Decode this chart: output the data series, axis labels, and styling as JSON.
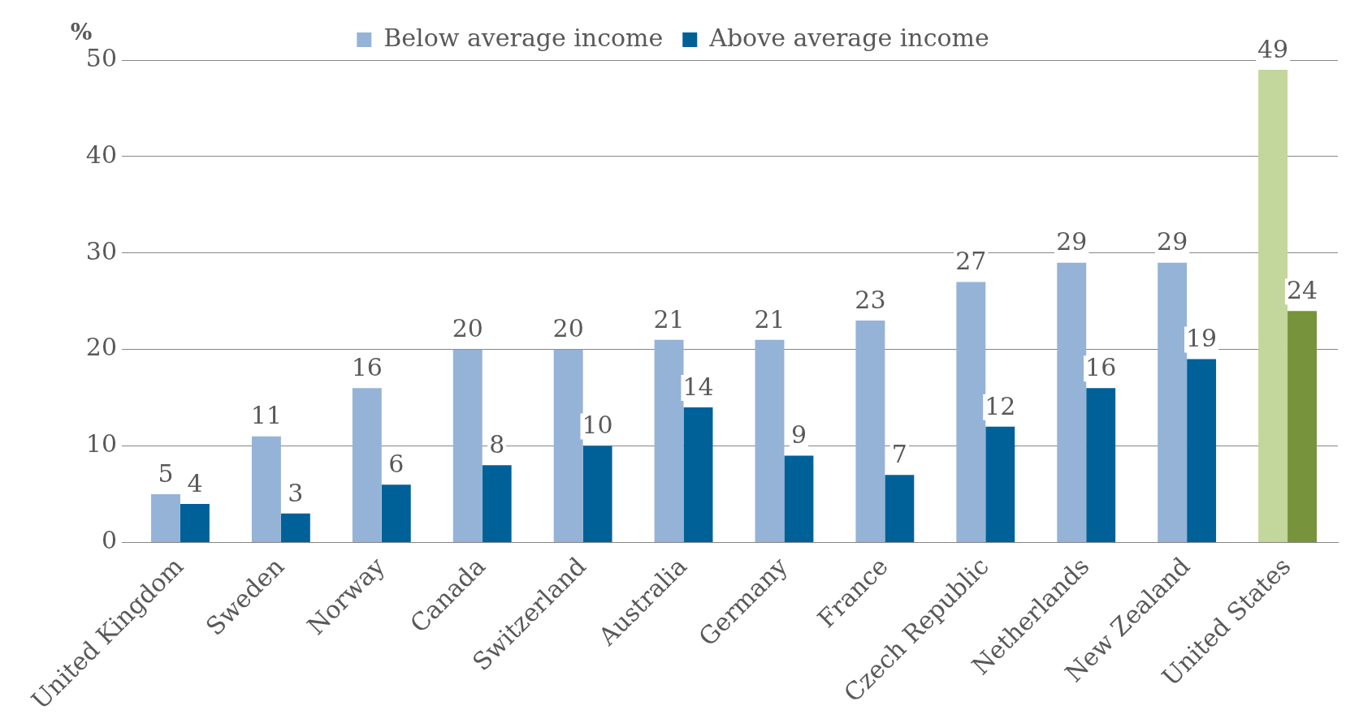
{
  "chart_data": {
    "type": "bar",
    "ylabel": "%",
    "categories": [
      "United Kingdom",
      "Sweden",
      "Norway",
      "Canada",
      "Switzerland",
      "Australia",
      "Germany",
      "France",
      "Czech Republic",
      "Netherlands",
      "New Zealand",
      "United States"
    ],
    "series": [
      {
        "name": "Below average income",
        "color": "#95b3d7",
        "colors": [
          "#95b3d7",
          "#95b3d7",
          "#95b3d7",
          "#95b3d7",
          "#95b3d7",
          "#95b3d7",
          "#95b3d7",
          "#95b3d7",
          "#95b3d7",
          "#95b3d7",
          "#95b3d7",
          "#c3d69b"
        ],
        "values": [
          5,
          11,
          16,
          20,
          20,
          21,
          21,
          23,
          27,
          29,
          29,
          49
        ]
      },
      {
        "name": "Above average income",
        "color": "#006199",
        "colors": [
          "#006199",
          "#006199",
          "#006199",
          "#006199",
          "#006199",
          "#006199",
          "#006199",
          "#006199",
          "#006199",
          "#006199",
          "#006199",
          "#77933c"
        ],
        "values": [
          4,
          3,
          6,
          8,
          10,
          14,
          9,
          7,
          12,
          16,
          19,
          24
        ]
      }
    ],
    "ylim": [
      0,
      50
    ],
    "yticks": [
      0,
      10,
      20,
      30,
      40,
      50
    ],
    "grid": "y",
    "legend": "top",
    "data_labels": true
  }
}
